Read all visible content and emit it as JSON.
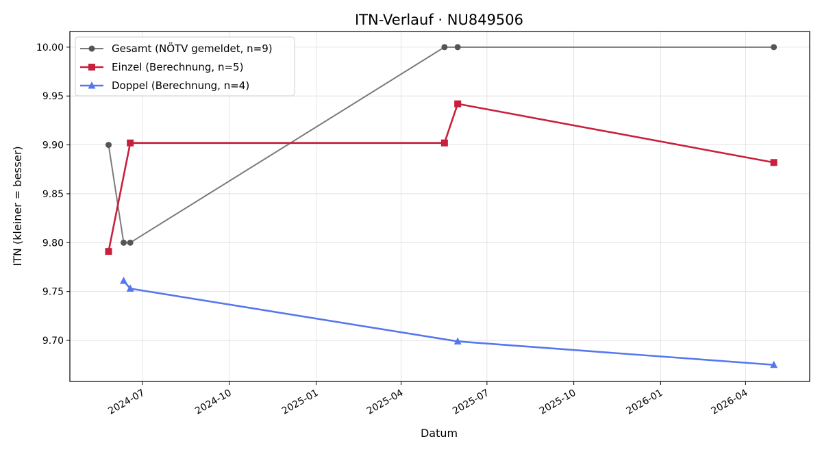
{
  "chart_data": {
    "type": "line",
    "title": "ITN-Verlauf · NU849506",
    "xlabel": "Datum",
    "ylabel": "ITN  (kleiner = besser)",
    "xlim": [
      "2024-04-15",
      "2026-06-08"
    ],
    "ylim": [
      9.658,
      10.016
    ],
    "x_ticks": [
      "2024-07",
      "2024-10",
      "2025-01",
      "2025-04",
      "2025-07",
      "2025-10",
      "2026-01",
      "2026-04"
    ],
    "y_ticks": [
      "9.70",
      "9.75",
      "9.80",
      "9.85",
      "9.90",
      "9.95",
      "10.00"
    ],
    "grid": true,
    "legend_position": "top-left",
    "series": [
      {
        "name": "Gesamt (NÖTV gemeldet, n=9)",
        "color": "#555555",
        "marker": "circle",
        "points": [
          {
            "x": "2024-05-26",
            "y": 9.9
          },
          {
            "x": "2024-06-11",
            "y": 9.8
          },
          {
            "x": "2024-06-18",
            "y": 9.8
          },
          {
            "x": "2025-05-17",
            "y": 10.0
          },
          {
            "x": "2025-05-31",
            "y": 10.0
          },
          {
            "x": "2026-05-01",
            "y": 10.0
          }
        ]
      },
      {
        "name": "Einzel (Berechnung, n=5)",
        "color": "#c8203c",
        "marker": "square",
        "points": [
          {
            "x": "2024-05-26",
            "y": 9.791
          },
          {
            "x": "2024-06-18",
            "y": 9.902
          },
          {
            "x": "2025-05-17",
            "y": 9.902
          },
          {
            "x": "2025-05-31",
            "y": 9.942
          },
          {
            "x": "2026-05-01",
            "y": 9.882
          }
        ]
      },
      {
        "name": "Doppel (Berechnung, n=4)",
        "color": "#5577ee",
        "marker": "triangle",
        "points": [
          {
            "x": "2024-06-11",
            "y": 9.761
          },
          {
            "x": "2024-06-18",
            "y": 9.753
          },
          {
            "x": "2025-05-31",
            "y": 9.699
          },
          {
            "x": "2026-05-01",
            "y": 9.675
          }
        ]
      }
    ]
  }
}
